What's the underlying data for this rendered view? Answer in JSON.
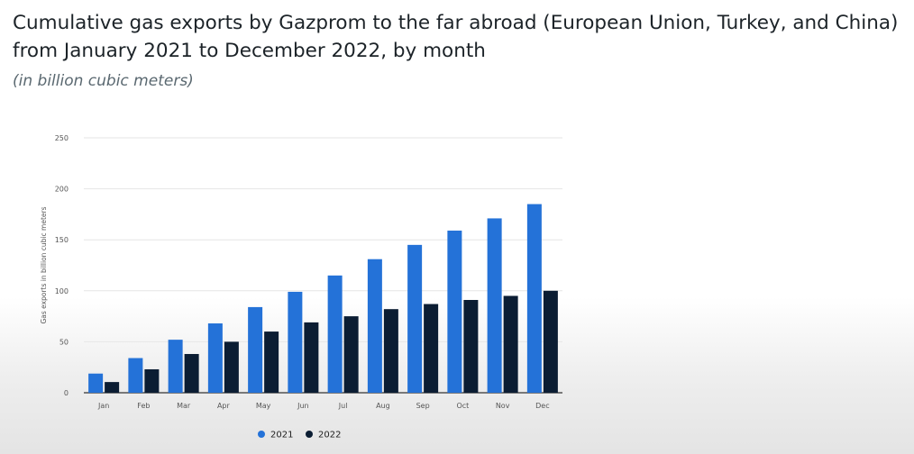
{
  "header": {
    "title_line1": "Cumulative gas exports by Gazprom to the far abroad (European Union, Turkey, and China)",
    "title_line2": "from January 2021 to December 2022, by month",
    "subtitle": "(in billion cubic meters)"
  },
  "chart_data": {
    "type": "bar",
    "categories": [
      "Jan",
      "Feb",
      "Mar",
      "Apr",
      "May",
      "Jun",
      "Jul",
      "Aug",
      "Sep",
      "Oct",
      "Nov",
      "Dec"
    ],
    "series": [
      {
        "name": "2021",
        "color": "#2472d8",
        "values": [
          18.8,
          34,
          52,
          68,
          84,
          99,
          115,
          131,
          145,
          159,
          171,
          185
        ]
      },
      {
        "name": "2022",
        "color": "#0b1d33",
        "values": [
          10.5,
          23,
          38,
          50,
          60,
          69,
          75,
          82,
          87,
          91,
          95,
          100
        ]
      }
    ],
    "ylabel": "Gas exports in billion cubic meters",
    "ylim": [
      0,
      250
    ],
    "yticks": [
      0,
      50,
      100,
      150,
      200,
      250
    ],
    "grid": true,
    "legend_position": "bottom-center"
  }
}
